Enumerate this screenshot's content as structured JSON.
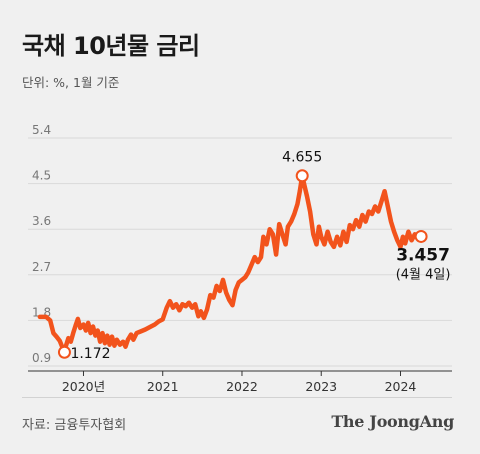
{
  "header": {
    "title": "국채 10년물 금리",
    "unit_note": "단위: %, 1월 기준"
  },
  "footer": {
    "source": "자료: 금융투자협회",
    "brand": "The JoongAng"
  },
  "colors": {
    "line": "#f2531c",
    "grid": "#d9d9d9",
    "background": "#f0f0f0"
  },
  "chart_data": {
    "type": "line",
    "title": "국채 10년물 금리",
    "ylabel": "%",
    "ylim": [
      0.9,
      5.4
    ],
    "yticks": [
      "0.9",
      "1.8",
      "2.7",
      "3.6",
      "4.5",
      "5.4"
    ],
    "xlim": [
      2019.3,
      2024.65
    ],
    "xticks": [
      {
        "x": 2020,
        "label": "2020년"
      },
      {
        "x": 2021,
        "label": "2021"
      },
      {
        "x": 2022,
        "label": "2022"
      },
      {
        "x": 2023,
        "label": "2023"
      },
      {
        "x": 2024,
        "label": "2024"
      }
    ],
    "grid": "horizontal",
    "series": [
      {
        "points": [
          [
            2019.45,
            1.87
          ],
          [
            2019.53,
            1.87
          ],
          [
            2019.58,
            1.8
          ],
          [
            2019.62,
            1.55
          ],
          [
            2019.66,
            1.48
          ],
          [
            2019.7,
            1.4
          ],
          [
            2019.73,
            1.28
          ],
          [
            2019.76,
            1.172
          ],
          [
            2019.78,
            1.3
          ],
          [
            2019.81,
            1.45
          ],
          [
            2019.84,
            1.38
          ],
          [
            2019.87,
            1.55
          ],
          [
            2019.9,
            1.7
          ],
          [
            2019.93,
            1.83
          ],
          [
            2019.96,
            1.65
          ],
          [
            2020.0,
            1.72
          ],
          [
            2020.03,
            1.6
          ],
          [
            2020.06,
            1.75
          ],
          [
            2020.09,
            1.55
          ],
          [
            2020.12,
            1.68
          ],
          [
            2020.15,
            1.5
          ],
          [
            2020.18,
            1.6
          ],
          [
            2020.21,
            1.38
          ],
          [
            2020.24,
            1.55
          ],
          [
            2020.27,
            1.35
          ],
          [
            2020.3,
            1.5
          ],
          [
            2020.33,
            1.32
          ],
          [
            2020.36,
            1.48
          ],
          [
            2020.39,
            1.3
          ],
          [
            2020.42,
            1.42
          ],
          [
            2020.46,
            1.32
          ],
          [
            2020.5,
            1.38
          ],
          [
            2020.53,
            1.28
          ],
          [
            2020.56,
            1.42
          ],
          [
            2020.6,
            1.52
          ],
          [
            2020.63,
            1.42
          ],
          [
            2020.67,
            1.55
          ],
          [
            2020.72,
            1.58
          ],
          [
            2020.78,
            1.62
          ],
          [
            2020.84,
            1.67
          ],
          [
            2020.9,
            1.72
          ],
          [
            2020.95,
            1.78
          ],
          [
            2021.0,
            1.82
          ],
          [
            2021.05,
            2.05
          ],
          [
            2021.09,
            2.18
          ],
          [
            2021.13,
            2.05
          ],
          [
            2021.17,
            2.12
          ],
          [
            2021.21,
            2.0
          ],
          [
            2021.25,
            2.12
          ],
          [
            2021.29,
            2.08
          ],
          [
            2021.33,
            2.15
          ],
          [
            2021.37,
            2.05
          ],
          [
            2021.41,
            2.12
          ],
          [
            2021.45,
            1.88
          ],
          [
            2021.48,
            1.98
          ],
          [
            2021.52,
            1.85
          ],
          [
            2021.56,
            2.02
          ],
          [
            2021.6,
            2.3
          ],
          [
            2021.64,
            2.25
          ],
          [
            2021.68,
            2.48
          ],
          [
            2021.72,
            2.38
          ],
          [
            2021.76,
            2.6
          ],
          [
            2021.8,
            2.35
          ],
          [
            2021.84,
            2.2
          ],
          [
            2021.88,
            2.1
          ],
          [
            2021.92,
            2.4
          ],
          [
            2021.96,
            2.55
          ],
          [
            2022.0,
            2.6
          ],
          [
            2022.04,
            2.65
          ],
          [
            2022.08,
            2.75
          ],
          [
            2022.12,
            2.9
          ],
          [
            2022.16,
            3.05
          ],
          [
            2022.2,
            2.95
          ],
          [
            2022.24,
            3.05
          ],
          [
            2022.27,
            3.45
          ],
          [
            2022.31,
            3.3
          ],
          [
            2022.35,
            3.6
          ],
          [
            2022.39,
            3.5
          ],
          [
            2022.43,
            3.1
          ],
          [
            2022.47,
            3.7
          ],
          [
            2022.51,
            3.5
          ],
          [
            2022.55,
            3.3
          ],
          [
            2022.58,
            3.65
          ],
          [
            2022.62,
            3.75
          ],
          [
            2022.66,
            3.9
          ],
          [
            2022.7,
            4.1
          ],
          [
            2022.73,
            4.35
          ],
          [
            2022.76,
            4.655
          ],
          [
            2022.79,
            4.45
          ],
          [
            2022.82,
            4.25
          ],
          [
            2022.86,
            3.95
          ],
          [
            2022.9,
            3.5
          ],
          [
            2022.94,
            3.3
          ],
          [
            2022.97,
            3.65
          ],
          [
            2023.0,
            3.45
          ],
          [
            2023.04,
            3.3
          ],
          [
            2023.08,
            3.55
          ],
          [
            2023.12,
            3.35
          ],
          [
            2023.16,
            3.25
          ],
          [
            2023.2,
            3.45
          ],
          [
            2023.24,
            3.28
          ],
          [
            2023.28,
            3.55
          ],
          [
            2023.32,
            3.35
          ],
          [
            2023.36,
            3.68
          ],
          [
            2023.4,
            3.6
          ],
          [
            2023.44,
            3.78
          ],
          [
            2023.48,
            3.65
          ],
          [
            2023.52,
            3.88
          ],
          [
            2023.56,
            3.75
          ],
          [
            2023.6,
            3.95
          ],
          [
            2023.64,
            3.9
          ],
          [
            2023.68,
            4.05
          ],
          [
            2023.72,
            3.95
          ],
          [
            2023.76,
            4.15
          ],
          [
            2023.8,
            4.35
          ],
          [
            2023.84,
            4.05
          ],
          [
            2023.88,
            3.75
          ],
          [
            2023.92,
            3.55
          ],
          [
            2023.96,
            3.38
          ],
          [
            2024.0,
            3.25
          ],
          [
            2024.03,
            3.45
          ],
          [
            2024.06,
            3.32
          ],
          [
            2024.1,
            3.55
          ],
          [
            2024.14,
            3.38
          ],
          [
            2024.18,
            3.5
          ],
          [
            2024.22,
            3.42
          ],
          [
            2024.26,
            3.457
          ]
        ]
      }
    ],
    "annotations": [
      {
        "x": 2019.76,
        "y": 1.172,
        "label": "1.172",
        "sub": ""
      },
      {
        "x": 2022.76,
        "y": 4.655,
        "label": "4.655",
        "sub": ""
      },
      {
        "x": 2024.26,
        "y": 3.457,
        "label": "3.457",
        "sub": "(4월 4일)"
      }
    ]
  }
}
